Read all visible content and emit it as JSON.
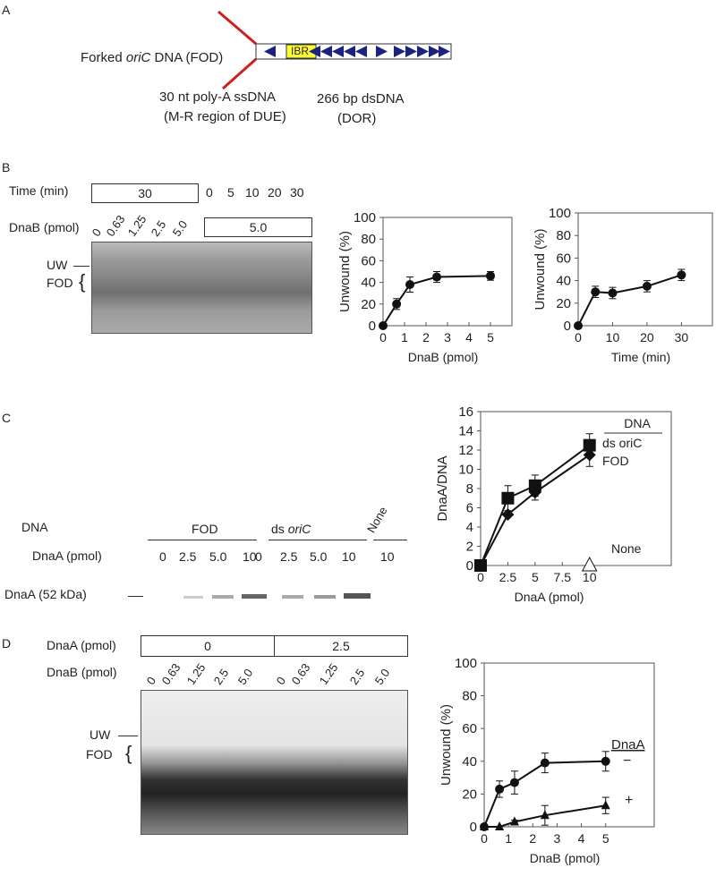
{
  "panels": {
    "a": "A",
    "b": "B",
    "c": "C",
    "d": "D"
  },
  "panelA": {
    "fod_label_pre": "Forked ",
    "fod_label_italic": "oriC",
    "fod_label_post": " DNA (FOD)",
    "ibr": "IBR",
    "ss_line1": "30 nt poly-A ssDNA",
    "ss_line2": "(M-R region of DUE)",
    "ds_line1": "266 bp dsDNA",
    "ds_line2": "(DOR)",
    "colors": {
      "ssdna": "#cc1f1f",
      "ibr": "#ffff33",
      "arrow": "#1a237e"
    }
  },
  "panelB": {
    "time_label": "Time (min)",
    "time_box": "30",
    "times": [
      "0",
      "5",
      "10",
      "20",
      "30"
    ],
    "dnab_label": "DnaB (pmol)",
    "dnab_lanes": [
      "0",
      "0.63",
      "1.25",
      "2.5",
      "5.0"
    ],
    "dnab_box": "5.0",
    "uw": "UW",
    "fod": "FOD"
  },
  "panelC": {
    "dna_label": "DNA",
    "fod_group": "FOD",
    "ds_group_pre": "ds ",
    "ds_group_italic": "oriC",
    "none_group": "None",
    "dnaa_label": "DnaA (pmol)",
    "fod_lanes": [
      "0",
      "2.5",
      "5.0",
      "10"
    ],
    "ds_lanes": [
      "0",
      "2.5",
      "5.0",
      "10"
    ],
    "none_lanes": [
      "10"
    ],
    "band_label": "DnaA (52 kDa)"
  },
  "panelD": {
    "dnaa_label": "DnaA (pmol)",
    "dnaa_boxes": [
      "0",
      "2.5"
    ],
    "dnab_label": "DnaB (pmol)",
    "lanes": [
      "0",
      "0.63",
      "1.25",
      "2.5",
      "5.0",
      "0",
      "0.63",
      "1.25",
      "2.5",
      "5.0"
    ],
    "uw": "UW",
    "fod": "FOD"
  },
  "chart_data": [
    {
      "id": "b1",
      "type": "line",
      "title": "",
      "xlabel": "DnaB (pmol)",
      "ylabel": "Unwound (%)",
      "xlim": [
        0,
        6
      ],
      "ylim": [
        0,
        100
      ],
      "xticks": [
        0,
        1,
        2,
        3,
        4,
        5
      ],
      "yticks": [
        0,
        20,
        40,
        60,
        80,
        100
      ],
      "series": [
        {
          "name": "FOD",
          "marker": "circle",
          "x": [
            0,
            0.63,
            1.25,
            2.5,
            5
          ],
          "y": [
            0,
            20,
            38,
            45,
            46
          ],
          "err": [
            0,
            5,
            7,
            5,
            4
          ]
        }
      ]
    },
    {
      "id": "b2",
      "type": "line",
      "title": "",
      "xlabel": "Time (min)",
      "ylabel": "Unwound (%)",
      "xlim": [
        0,
        39
      ],
      "ylim": [
        0,
        100
      ],
      "xticks": [
        0,
        10,
        20,
        30
      ],
      "yticks": [
        0,
        20,
        40,
        60,
        80,
        100
      ],
      "series": [
        {
          "name": "FOD",
          "marker": "circle",
          "x": [
            0,
            5,
            10,
            20,
            30
          ],
          "y": [
            0,
            30,
            29,
            35,
            45
          ],
          "err": [
            0,
            5,
            5,
            5,
            5
          ]
        }
      ]
    },
    {
      "id": "c",
      "type": "line",
      "title": "",
      "xlabel": "DnaA (pmol)",
      "ylabel": "DnaA/DNA",
      "xlim": [
        0,
        17.5
      ],
      "ylim": [
        0,
        16
      ],
      "xticks": [
        0,
        2.5,
        5,
        7.5,
        10
      ],
      "yticks": [
        0,
        2,
        4,
        6,
        8,
        10,
        12,
        14,
        16
      ],
      "legend": {
        "title": "DNA",
        "entries": [
          "ds oriC",
          "FOD",
          "None"
        ],
        "placement": "right"
      },
      "series": [
        {
          "name": "ds oriC",
          "marker": "square",
          "x": [
            0,
            2.5,
            5,
            10
          ],
          "y": [
            0,
            7,
            8.3,
            12.5
          ],
          "err": [
            0,
            1.3,
            1.1,
            1.2
          ]
        },
        {
          "name": "FOD",
          "marker": "diamond",
          "x": [
            0,
            2.5,
            5,
            10
          ],
          "y": [
            0,
            5.3,
            7.6,
            11.5
          ],
          "err": [
            0,
            0,
            0.8,
            1.2
          ]
        },
        {
          "name": "None",
          "marker": "open-triangle",
          "x": [
            10
          ],
          "y": [
            0
          ],
          "err": [
            0
          ]
        }
      ]
    },
    {
      "id": "d",
      "type": "line",
      "title": "",
      "xlabel": "DnaB (pmol)",
      "ylabel": "Unwound (%)",
      "xlim": [
        0,
        7
      ],
      "ylim": [
        0,
        100
      ],
      "xticks": [
        0,
        1,
        2,
        3,
        4,
        5
      ],
      "yticks": [
        0,
        20,
        40,
        60,
        80,
        100
      ],
      "legend": {
        "title": "DnaA",
        "entries": [
          "−",
          "+"
        ],
        "placement": "right"
      },
      "series": [
        {
          "name": "−",
          "marker": "circle",
          "x": [
            0,
            0.63,
            1.25,
            2.5,
            5
          ],
          "y": [
            0,
            23,
            27,
            39,
            40
          ],
          "err": [
            0,
            5,
            7,
            6,
            6
          ]
        },
        {
          "name": "+",
          "marker": "triangle",
          "x": [
            0,
            0.63,
            1.25,
            2.5,
            5
          ],
          "y": [
            0,
            0,
            3,
            7,
            13
          ],
          "err": [
            0,
            0,
            1,
            6,
            5
          ]
        }
      ]
    }
  ]
}
